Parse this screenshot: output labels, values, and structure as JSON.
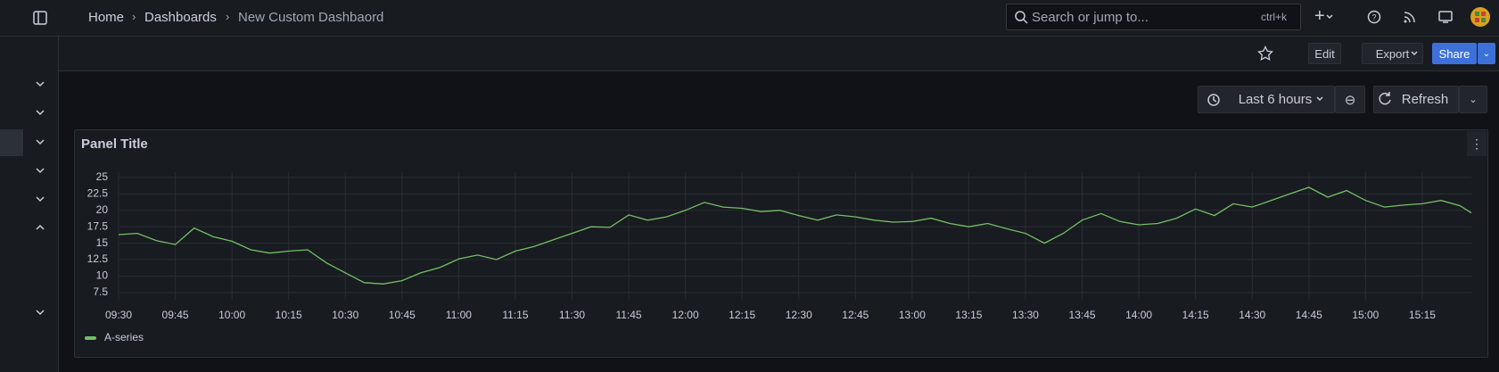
{
  "topbar": {
    "breadcrumbs": [
      "Home",
      "Dashboards",
      "New Custom Dashbaord"
    ],
    "search": {
      "placeholder": "Search or jump to...",
      "shortcut": "ctrl+k"
    }
  },
  "toolbar": {
    "buttons": [
      "Edit",
      "Export",
      "Share"
    ]
  },
  "time_controls": {
    "range": "Last 6 hours",
    "refresh": "Refresh"
  },
  "panel": {
    "title": "Panel Title"
  },
  "chart_data": {
    "type": "line",
    "x": [
      "09:30",
      "09:35",
      "09:40",
      "09:45",
      "09:50",
      "09:55",
      "10:00",
      "10:05",
      "10:10",
      "10:15",
      "10:20",
      "10:25",
      "10:30",
      "10:35",
      "10:40",
      "10:45",
      "10:50",
      "10:55",
      "11:00",
      "11:05",
      "11:10",
      "11:15",
      "11:20",
      "11:25",
      "11:30",
      "11:35",
      "11:40",
      "11:45",
      "11:50",
      "11:55",
      "12:00",
      "12:05",
      "12:10",
      "12:15",
      "12:20",
      "12:25",
      "12:30",
      "12:35",
      "12:40",
      "12:45",
      "12:50",
      "12:55",
      "13:00",
      "13:05",
      "13:10",
      "13:15",
      "13:20",
      "13:25",
      "13:30",
      "13:35",
      "13:40",
      "13:45",
      "13:50",
      "13:55",
      "14:00",
      "14:05",
      "14:10",
      "14:15",
      "14:20",
      "14:25",
      "14:30",
      "14:35",
      "14:40",
      "14:45",
      "14:50",
      "14:55",
      "15:00",
      "15:05",
      "15:10",
      "15:15",
      "15:20",
      "15:25",
      "15:28"
    ],
    "series": [
      {
        "name": "A-series",
        "color": "#73bf69",
        "values": [
          16.3,
          16.5,
          15.4,
          14.8,
          17.3,
          16.0,
          15.3,
          14.0,
          13.5,
          13.8,
          14.0,
          12.0,
          10.5,
          9.0,
          8.8,
          9.3,
          10.5,
          11.3,
          12.6,
          13.2,
          12.5,
          13.8,
          14.5,
          15.5,
          16.5,
          17.5,
          17.4,
          19.3,
          18.5,
          19.0,
          20.0,
          21.2,
          20.5,
          20.3,
          19.8,
          20.0,
          19.2,
          18.5,
          19.3,
          19.0,
          18.5,
          18.2,
          18.3,
          18.8,
          18.0,
          17.5,
          18.0,
          17.2,
          16.5,
          15.0,
          16.5,
          18.5,
          19.5,
          18.3,
          17.8,
          18.0,
          18.8,
          20.2,
          19.2,
          21.0,
          20.5,
          21.5,
          22.5,
          23.5,
          22.0,
          23.0,
          21.5,
          20.5,
          20.8,
          21.0,
          21.5,
          20.7,
          19.6
        ]
      }
    ],
    "xlim": [
      "09:30",
      "15:28"
    ],
    "xticks": [
      "09:30",
      "09:45",
      "10:00",
      "10:15",
      "10:30",
      "10:45",
      "11:00",
      "11:15",
      "11:30",
      "11:45",
      "12:00",
      "12:15",
      "12:30",
      "12:45",
      "13:00",
      "13:15",
      "13:30",
      "13:45",
      "14:00",
      "14:15",
      "14:30",
      "14:45",
      "15:00",
      "15:15"
    ],
    "ylim": [
      6.4,
      25.8
    ],
    "yticks": [
      7.5,
      10,
      12.5,
      15,
      17.5,
      20,
      22.5,
      25
    ],
    "grid": true,
    "legend": "bottom-left"
  }
}
